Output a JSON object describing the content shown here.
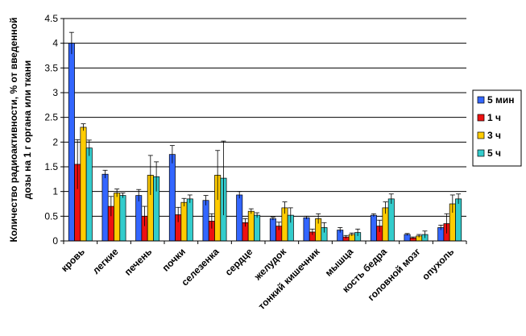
{
  "chart_data": {
    "type": "bar",
    "ylabel_lines": [
      "Количество радиоактивности, % от введенной",
      "дозы на 1 г органа или ткани"
    ],
    "ylim": [
      0,
      4.5
    ],
    "yticks": [
      "0",
      "0.5",
      "1",
      "1.5",
      "2",
      "2.5",
      "3",
      "3.5",
      "4",
      "4.5"
    ],
    "grid": true,
    "legend_position": "right",
    "categories": [
      "кровь",
      "легкие",
      "печень",
      "почки",
      "селезенка",
      "сердце",
      "желудок",
      "тонкий кишечник",
      "мышца",
      "кость бедра",
      "головной мозг",
      "опухоль"
    ],
    "series": [
      {
        "name": "5 мин",
        "color": "#3366ff",
        "values": [
          4.0,
          1.35,
          0.92,
          1.75,
          0.82,
          0.93,
          0.45,
          0.47,
          0.22,
          0.52,
          0.13,
          0.27
        ],
        "errors": [
          0.22,
          0.08,
          0.12,
          0.18,
          0.1,
          0.07,
          0.03,
          0.03,
          0.05,
          0.03,
          0.02,
          0.05
        ]
      },
      {
        "name": "1 ч",
        "color": "#ee1111",
        "values": [
          1.55,
          0.7,
          0.5,
          0.53,
          0.4,
          0.37,
          0.3,
          0.18,
          0.08,
          0.3,
          0.06,
          0.35
        ],
        "errors": [
          0.5,
          0.2,
          0.2,
          0.15,
          0.15,
          0.08,
          0.08,
          0.06,
          0.03,
          0.12,
          0.02,
          0.2
        ]
      },
      {
        "name": "3 ч",
        "color": "#ffcc00",
        "values": [
          2.3,
          0.97,
          1.33,
          0.78,
          1.33,
          0.6,
          0.67,
          0.45,
          0.13,
          0.67,
          0.1,
          0.75
        ],
        "errors": [
          0.07,
          0.08,
          0.4,
          0.08,
          0.5,
          0.05,
          0.12,
          0.1,
          0.03,
          0.12,
          0.03,
          0.18
        ]
      },
      {
        "name": "5 ч",
        "color": "#33cccc",
        "values": [
          1.88,
          0.92,
          1.3,
          0.85,
          1.27,
          0.52,
          0.52,
          0.27,
          0.17,
          0.85,
          0.13,
          0.85
        ],
        "errors": [
          0.16,
          0.05,
          0.3,
          0.08,
          0.75,
          0.05,
          0.15,
          0.1,
          0.07,
          0.1,
          0.07,
          0.1
        ]
      }
    ]
  }
}
